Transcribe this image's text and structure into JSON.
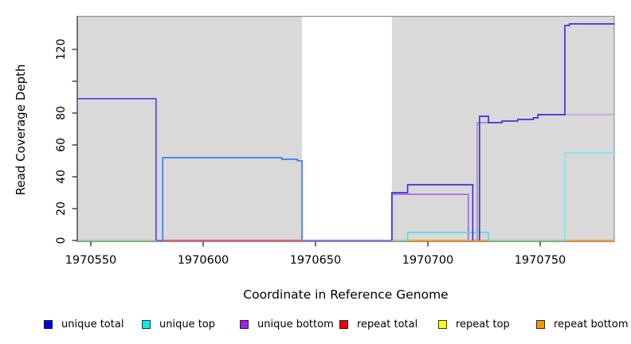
{
  "chart_data": {
    "type": "line",
    "subtype": "step-coverage-plot",
    "title": "",
    "xlabel": "Coordinate in Reference Genome",
    "ylabel": "Read Coverage Depth",
    "xlim": [
      1970544,
      1970783
    ],
    "ylim": [
      0,
      141
    ],
    "grid": false,
    "legend_position": "bottom",
    "panel_background": "#d9d9d9",
    "panel_border_color": "#909090",
    "bg_regions": [
      {
        "name": "repeat-region-left",
        "from": 1970544,
        "to": 1970644,
        "color": "#d9d9d9"
      },
      {
        "name": "unique-gap",
        "from": 1970644,
        "to": 1970684,
        "color": "#ffffff"
      },
      {
        "name": "repeat-region-right",
        "from": 1970684,
        "to": 1970783,
        "color": "#d9d9d9"
      }
    ],
    "x_ticks": [
      {
        "v": 1970550,
        "label": "1970550"
      },
      {
        "v": 1970600,
        "label": "1970600"
      },
      {
        "v": 1970650,
        "label": "1970650"
      },
      {
        "v": 1970700,
        "label": "1970700"
      },
      {
        "v": 1970750,
        "label": "1970750"
      }
    ],
    "y_ticks": [
      {
        "v": 0,
        "label": "0"
      },
      {
        "v": 20,
        "label": "20"
      },
      {
        "v": 40,
        "label": "40"
      },
      {
        "v": 60,
        "label": "60"
      },
      {
        "v": 80,
        "label": "80"
      },
      {
        "v": 100,
        "label": ""
      },
      {
        "v": 120,
        "label": "120"
      }
    ],
    "baseline_zero_segments": [
      {
        "color": "#86c986",
        "from": 1970544,
        "to": 1970579
      },
      {
        "color": "#6456e8",
        "from": 1970579,
        "to": 1970582
      },
      {
        "color": "#6456e8",
        "from": 1970644,
        "to": 1970684
      },
      {
        "color": "#86c986",
        "from": 1970684,
        "to": 1970691
      },
      {
        "color": "#86c986",
        "from": 1970727,
        "to": 1970761
      }
    ],
    "series": [
      {
        "name": "unique total",
        "legend_color": "#0000EE",
        "paths": [
          {
            "c": "#5b43e6",
            "pts": [
              [
                1970544,
                89
              ],
              [
                1970579,
                89
              ],
              [
                1970579,
                0
              ]
            ]
          },
          {
            "c": "#3f7df2",
            "pts": [
              [
                1970582,
                0
              ],
              [
                1970582,
                52
              ],
              [
                1970635,
                52
              ],
              [
                1970635,
                51
              ],
              [
                1970642,
                51
              ],
              [
                1970642,
                50
              ],
              [
                1970644,
                50
              ],
              [
                1970644,
                0
              ]
            ]
          },
          {
            "c": "#3b33df",
            "pts": [
              [
                1970684,
                0
              ],
              [
                1970684,
                30
              ],
              [
                1970691,
                30
              ],
              [
                1970691,
                35
              ],
              [
                1970720,
                35
              ],
              [
                1970720,
                0
              ]
            ]
          },
          {
            "c": "#3b33df",
            "pts": [
              [
                1970723,
                0
              ],
              [
                1970723,
                78
              ],
              [
                1970727,
                78
              ],
              [
                1970727,
                74
              ],
              [
                1970733,
                74
              ],
              [
                1970733,
                75
              ],
              [
                1970740,
                75
              ],
              [
                1970740,
                76
              ],
              [
                1970747,
                76
              ],
              [
                1970747,
                77
              ],
              [
                1970749,
                77
              ],
              [
                1970749,
                79
              ],
              [
                1970761,
                79
              ],
              [
                1970761,
                135
              ],
              [
                1970763,
                135
              ],
              [
                1970763,
                136
              ],
              [
                1970783,
                136
              ]
            ]
          }
        ]
      },
      {
        "name": "unique top",
        "legend_color": "#00EEEE",
        "paths": [
          {
            "c": "#58dde9",
            "pts": [
              [
                1970691,
                0
              ],
              [
                1970691,
                5
              ],
              [
                1970727,
                5
              ],
              [
                1970727,
                0
              ]
            ]
          },
          {
            "c": "#7ee8f0",
            "pts": [
              [
                1970761,
                0
              ],
              [
                1970761,
                55
              ],
              [
                1970783,
                55
              ]
            ]
          }
        ]
      },
      {
        "name": "unique bottom",
        "legend_color": "#A020F0",
        "paths": [
          {
            "c": "#a86ae2",
            "pts": [
              [
                1970684,
                0
              ],
              [
                1970684,
                29
              ],
              [
                1970718,
                29
              ],
              [
                1970718,
                0
              ]
            ]
          },
          {
            "c": "#b57be0",
            "pts": [
              [
                1970722,
                0
              ],
              [
                1970722,
                74
              ],
              [
                1970729,
                74
              ]
            ]
          },
          {
            "c": "#c9a3e8",
            "pts": [
              [
                1970749,
                79
              ],
              [
                1970783,
                79
              ]
            ]
          }
        ]
      },
      {
        "name": "repeat total",
        "legend_color": "#EE0000",
        "paths": [
          {
            "c": "#e0505f",
            "pts": [
              [
                1970582,
                0
              ],
              [
                1970644,
                0
              ]
            ]
          }
        ]
      },
      {
        "name": "repeat top",
        "legend_color": "#FFFF00",
        "paths": []
      },
      {
        "name": "repeat bottom",
        "legend_color": "#EE9900",
        "paths": [
          {
            "c": "#ff9820",
            "pts": [
              [
                1970691,
                0
              ],
              [
                1970727,
                0
              ]
            ]
          },
          {
            "c": "#ff9820",
            "pts": [
              [
                1970761,
                0
              ],
              [
                1970783,
                0
              ]
            ]
          }
        ]
      }
    ],
    "legend": [
      {
        "label": "unique total",
        "color": "#0000EE"
      },
      {
        "label": "unique top",
        "color": "#00EEEE"
      },
      {
        "label": "unique bottom",
        "color": "#A020F0"
      },
      {
        "label": "repeat total",
        "color": "#EE0000"
      },
      {
        "label": "repeat top",
        "color": "#FFFF00"
      },
      {
        "label": "repeat bottom",
        "color": "#EE9900"
      }
    ]
  }
}
